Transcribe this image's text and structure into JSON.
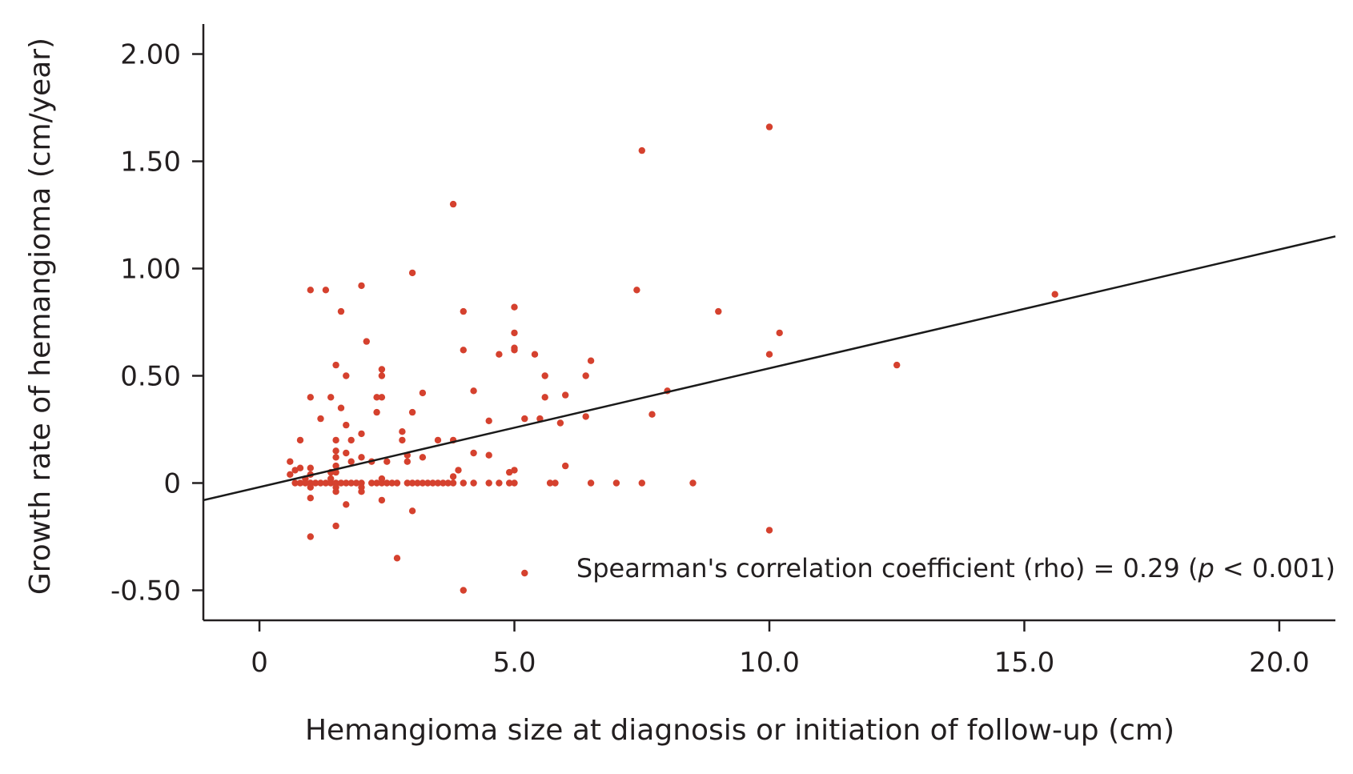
{
  "chart_data": {
    "type": "scatter",
    "title": "",
    "xlabel": "Hemangioma size at diagnosis or initiation of follow-up (cm)",
    "ylabel": "Growth rate of hemangioma (cm/year)",
    "xlim": [
      -1.1,
      21.1
    ],
    "ylim": [
      -0.64,
      2.14
    ],
    "x_ticks": [
      0,
      5,
      10,
      15,
      20
    ],
    "x_tick_labels": [
      "0",
      "5.0",
      "10.0",
      "15.0",
      "20.0"
    ],
    "y_ticks": [
      2.0,
      1.5,
      1.0,
      0.5,
      0,
      -0.5
    ],
    "y_tick_labels": [
      "2.00",
      "1.50",
      "1.00",
      "0.50",
      "0",
      "-0.50"
    ],
    "grid": false,
    "colors": {
      "points": "#d5412e",
      "line": "#1a1a1a",
      "axis": "#231f20"
    },
    "annotation": {
      "prefix": "Spearman's correlation coefficient (rho) = 0.29 (",
      "italic": "p",
      "suffix": " < 0.001)"
    },
    "regression_line": {
      "x": [
        -1.1,
        21.1
      ],
      "y": [
        -0.08,
        1.15
      ]
    },
    "points": [
      [
        0.6,
        0.1
      ],
      [
        0.6,
        0.04
      ],
      [
        0.7,
        0.06
      ],
      [
        0.7,
        0.0
      ],
      [
        0.8,
        0.07
      ],
      [
        0.8,
        0.0
      ],
      [
        0.8,
        0.2
      ],
      [
        0.9,
        0.02
      ],
      [
        0.9,
        0.0
      ],
      [
        1.0,
        0.9
      ],
      [
        1.0,
        0.4
      ],
      [
        1.0,
        0.07
      ],
      [
        1.0,
        0.04
      ],
      [
        1.0,
        0.0
      ],
      [
        1.0,
        -0.02
      ],
      [
        1.0,
        -0.07
      ],
      [
        1.0,
        -0.25
      ],
      [
        1.1,
        0.0
      ],
      [
        1.2,
        0.3
      ],
      [
        1.2,
        0.0
      ],
      [
        1.3,
        0.9
      ],
      [
        1.3,
        0.0
      ],
      [
        1.4,
        0.4
      ],
      [
        1.4,
        0.05
      ],
      [
        1.4,
        0.02
      ],
      [
        1.4,
        0.0
      ],
      [
        1.5,
        0.55
      ],
      [
        1.5,
        0.2
      ],
      [
        1.5,
        0.15
      ],
      [
        1.5,
        0.12
      ],
      [
        1.5,
        0.08
      ],
      [
        1.5,
        0.05
      ],
      [
        1.5,
        0.0
      ],
      [
        1.5,
        -0.02
      ],
      [
        1.5,
        -0.04
      ],
      [
        1.5,
        -0.2
      ],
      [
        1.6,
        0.8
      ],
      [
        1.6,
        0.35
      ],
      [
        1.6,
        0.0
      ],
      [
        1.7,
        0.5
      ],
      [
        1.7,
        0.27
      ],
      [
        1.7,
        0.14
      ],
      [
        1.7,
        0.0
      ],
      [
        1.7,
        -0.1
      ],
      [
        1.8,
        0.2
      ],
      [
        1.8,
        0.1
      ],
      [
        1.8,
        0.0
      ],
      [
        1.9,
        0.0
      ],
      [
        2.0,
        0.92
      ],
      [
        2.0,
        0.23
      ],
      [
        2.0,
        0.12
      ],
      [
        2.0,
        0.0
      ],
      [
        2.0,
        -0.02
      ],
      [
        2.0,
        -0.04
      ],
      [
        2.1,
        0.66
      ],
      [
        2.2,
        0.1
      ],
      [
        2.2,
        0.0
      ],
      [
        2.3,
        0.4
      ],
      [
        2.3,
        0.33
      ],
      [
        2.3,
        0.0
      ],
      [
        2.4,
        0.53
      ],
      [
        2.4,
        0.5
      ],
      [
        2.4,
        0.4
      ],
      [
        2.4,
        0.02
      ],
      [
        2.4,
        0.0
      ],
      [
        2.4,
        -0.08
      ],
      [
        2.5,
        0.1
      ],
      [
        2.5,
        0.0
      ],
      [
        2.6,
        0.0
      ],
      [
        2.7,
        0.0
      ],
      [
        2.7,
        -0.35
      ],
      [
        2.8,
        0.24
      ],
      [
        2.8,
        0.2
      ],
      [
        2.9,
        0.13
      ],
      [
        2.9,
        0.1
      ],
      [
        2.9,
        0.0
      ],
      [
        3.0,
        0.98
      ],
      [
        3.0,
        0.33
      ],
      [
        3.0,
        0.0
      ],
      [
        3.0,
        -0.13
      ],
      [
        3.1,
        0.0
      ],
      [
        3.2,
        0.42
      ],
      [
        3.2,
        0.12
      ],
      [
        3.2,
        0.0
      ],
      [
        3.3,
        0.0
      ],
      [
        3.4,
        0.0
      ],
      [
        3.5,
        0.2
      ],
      [
        3.5,
        0.0
      ],
      [
        3.6,
        0.0
      ],
      [
        3.7,
        0.0
      ],
      [
        3.8,
        1.3
      ],
      [
        3.8,
        0.2
      ],
      [
        3.8,
        0.03
      ],
      [
        3.8,
        0.0
      ],
      [
        3.9,
        0.06
      ],
      [
        4.0,
        0.8
      ],
      [
        4.0,
        0.62
      ],
      [
        4.0,
        0.0
      ],
      [
        4.0,
        -0.5
      ],
      [
        4.2,
        0.43
      ],
      [
        4.2,
        0.14
      ],
      [
        4.2,
        0.0
      ],
      [
        4.5,
        0.29
      ],
      [
        4.5,
        0.13
      ],
      [
        4.5,
        0.0
      ],
      [
        4.7,
        0.6
      ],
      [
        4.7,
        0.0
      ],
      [
        4.9,
        0.05
      ],
      [
        4.9,
        0.0
      ],
      [
        5.0,
        0.82
      ],
      [
        5.0,
        0.7
      ],
      [
        5.0,
        0.63
      ],
      [
        5.0,
        0.62
      ],
      [
        5.0,
        0.06
      ],
      [
        5.0,
        0.0
      ],
      [
        5.2,
        0.3
      ],
      [
        5.2,
        -0.42
      ],
      [
        5.4,
        0.6
      ],
      [
        5.5,
        0.3
      ],
      [
        5.6,
        0.5
      ],
      [
        5.6,
        0.4
      ],
      [
        5.7,
        0.0
      ],
      [
        5.8,
        0.0
      ],
      [
        5.9,
        0.28
      ],
      [
        6.0,
        0.41
      ],
      [
        6.0,
        0.08
      ],
      [
        6.4,
        0.5
      ],
      [
        6.4,
        0.31
      ],
      [
        6.5,
        0.57
      ],
      [
        6.5,
        0.0
      ],
      [
        7.0,
        0.0
      ],
      [
        7.4,
        0.9
      ],
      [
        7.5,
        1.55
      ],
      [
        7.5,
        0.0
      ],
      [
        7.7,
        0.32
      ],
      [
        8.0,
        0.43
      ],
      [
        8.5,
        0.0
      ],
      [
        9.0,
        0.8
      ],
      [
        10.0,
        1.66
      ],
      [
        10.0,
        0.6
      ],
      [
        10.0,
        -0.22
      ],
      [
        10.2,
        0.7
      ],
      [
        12.5,
        0.55
      ],
      [
        15.6,
        0.88
      ]
    ]
  }
}
